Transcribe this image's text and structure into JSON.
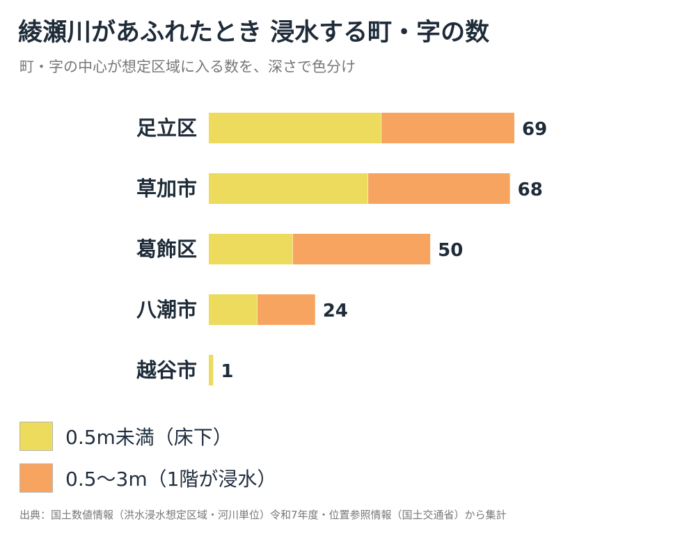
{
  "title": "綾瀬川があふれたとき 浸水する町・字の数",
  "subtitle": "町・字の中心が想定区域に入る数を、深さで色分け",
  "source": "出典：国土数値情報（洪水浸水想定区域・河川単位）令和7年度・位置参照情報（国土交通省）から集計",
  "colors": {
    "shallow": "#ecdb5c",
    "deep": "#f6a45f"
  },
  "chart_data": {
    "type": "bar",
    "orientation": "horizontal",
    "stacked": true,
    "categories": [
      "足立区",
      "草加市",
      "葛飾区",
      "八潮市",
      "越谷市"
    ],
    "series": [
      {
        "name": "0.5m未満（床下）",
        "values": [
          39,
          36,
          19,
          11,
          1
        ]
      },
      {
        "name": "0.5〜3m（1階が浸水）",
        "values": [
          30,
          32,
          31,
          13,
          0
        ]
      }
    ],
    "totals": [
      "69",
      "68",
      "50",
      "24",
      "1"
    ],
    "xlim": [
      0,
      69
    ],
    "grid": false,
    "legend": "bottom-left"
  }
}
